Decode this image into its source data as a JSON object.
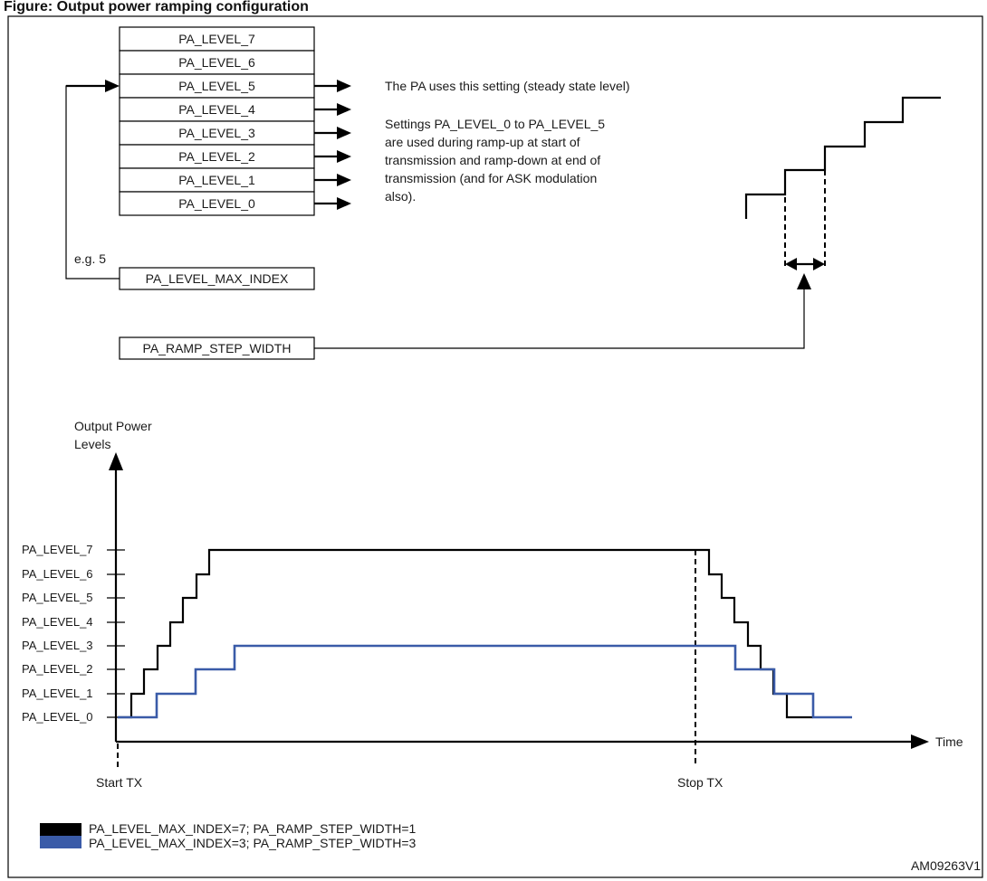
{
  "header": {
    "title": "Figure: Output power ramping configuration"
  },
  "register_stack": {
    "levels": [
      "PA_LEVEL_7",
      "PA_LEVEL_6",
      "PA_LEVEL_5",
      "PA_LEVEL_4",
      "PA_LEVEL_3",
      "PA_LEVEL_2",
      "PA_LEVEL_1",
      "PA_LEVEL_0"
    ],
    "selected_level_index": 5,
    "arrowed_levels": [
      5,
      4,
      3,
      2,
      1,
      0
    ]
  },
  "notes": {
    "steady_state": "The PA uses this setting (steady state level)",
    "ramp_lines": [
      "Settings PA_LEVEL_0 to PA_LEVEL_5",
      "are used during ramp-up at start of",
      "transmission and ramp-down at end of",
      "transmission (and for ASK modulation",
      "also)."
    ]
  },
  "max_index": {
    "example": "e.g. 5",
    "label": "PA_LEVEL_MAX_INDEX"
  },
  "ramp_step": {
    "label": "PA_RAMP_STEP_WIDTH"
  },
  "chart": {
    "y_title_line1": "Output Power",
    "y_title_line2": "Levels",
    "x_title": "Time",
    "start_label": "Start TX",
    "stop_label": "Stop TX",
    "y_ticks": [
      "PA_LEVEL_0",
      "PA_LEVEL_1",
      "PA_LEVEL_2",
      "PA_LEVEL_3",
      "PA_LEVEL_4",
      "PA_LEVEL_5",
      "PA_LEVEL_6",
      "PA_LEVEL_7"
    ]
  },
  "legend": [
    {
      "label": "PA_LEVEL_MAX_INDEX=7; PA_RAMP_STEP_WIDTH=1",
      "color": "#000000"
    },
    {
      "label": "PA_LEVEL_MAX_INDEX=3; PA_RAMP_STEP_WIDTH=3",
      "color": "#3a5ba8"
    }
  ],
  "footer": {
    "code": "AM09263V1"
  },
  "colors": {
    "black_series": "#000000",
    "blue_series": "#3a5ba8"
  }
}
